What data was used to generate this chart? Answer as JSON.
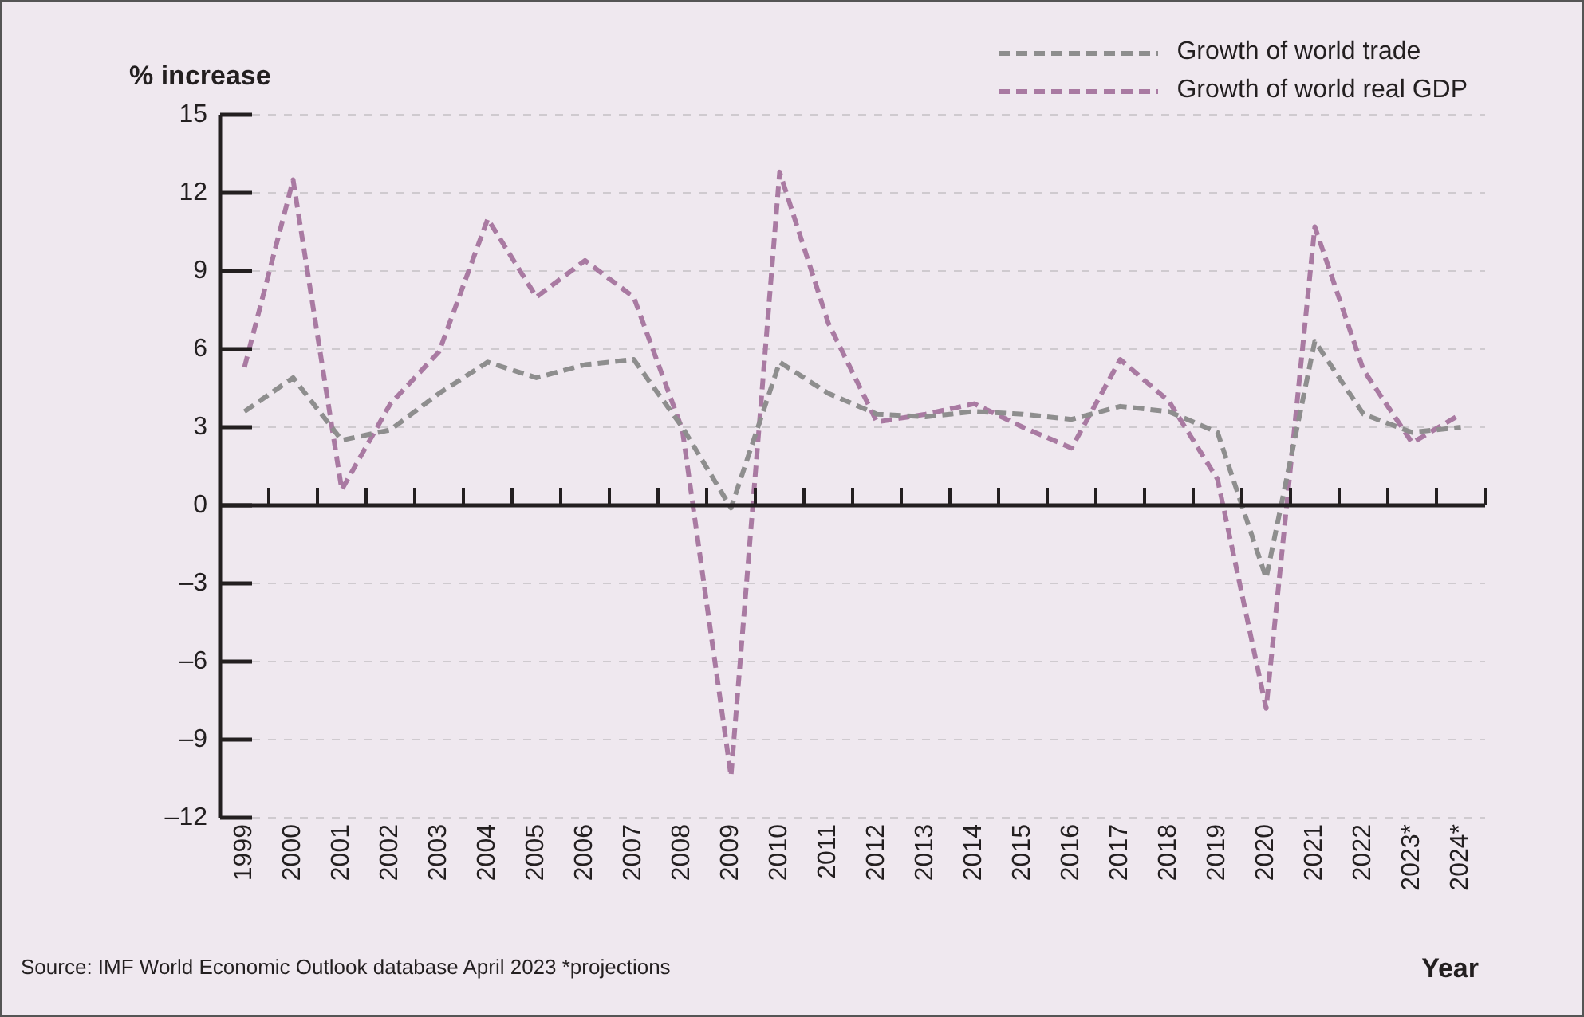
{
  "chart_data": {
    "type": "line",
    "ylabel": "% increase",
    "xlabel": "Year",
    "categories": [
      "1999",
      "2000",
      "2001",
      "2002",
      "2003",
      "2004",
      "2005",
      "2006",
      "2007",
      "2008",
      "2009",
      "2010",
      "2011",
      "2012",
      "2013",
      "2014",
      "2015",
      "2016",
      "2017",
      "2018",
      "2019",
      "2020",
      "2021",
      "2022",
      "2023*",
      "2024*"
    ],
    "series": [
      {
        "name": "Growth of world trade",
        "color": "#8e8e8e",
        "values": [
          3.6,
          4.9,
          2.5,
          2.9,
          4.3,
          5.5,
          4.9,
          5.4,
          5.6,
          3.0,
          -0.1,
          5.5,
          4.3,
          3.5,
          3.4,
          3.6,
          3.5,
          3.3,
          3.8,
          3.6,
          2.8,
          -2.8,
          6.3,
          3.5,
          2.8,
          3.0
        ]
      },
      {
        "name": "Growth of world real GDP",
        "color": "#a97aa2",
        "values": [
          5.3,
          12.5,
          0.6,
          3.9,
          5.9,
          11.0,
          8.0,
          9.4,
          8.0,
          2.9,
          -10.4,
          12.8,
          7.0,
          3.2,
          3.5,
          3.9,
          3.0,
          2.2,
          5.6,
          4.0,
          1.0,
          -7.8,
          10.7,
          5.2,
          2.4,
          3.5
        ]
      }
    ],
    "ylim": [
      -12,
      15
    ],
    "yticks": [
      {
        "value": -12,
        "label": "–12"
      },
      {
        "value": -9,
        "label": "–9"
      },
      {
        "value": -6,
        "label": "–6"
      },
      {
        "value": -3,
        "label": "–3"
      },
      0,
      3,
      6,
      9,
      12,
      15
    ],
    "grid": "y",
    "legend": "top right",
    "line_style": "dashed",
    "marker": "none",
    "annotations": [
      "Source: IMF World Economic Outlook database April 2023 *projections"
    ]
  }
}
